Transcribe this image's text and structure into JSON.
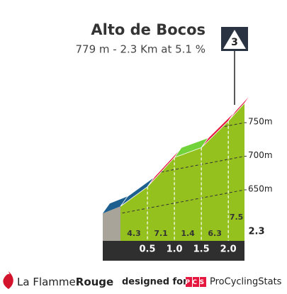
{
  "chart_data": {
    "type": "climb",
    "title": "Alto de Bocos",
    "subtitle": "779 m - 2.3 Km at 5.1 %",
    "category": "3",
    "x": [
      0.5,
      1,
      1.5,
      2,
      2.3
    ],
    "x_labels": [
      "0.5",
      "1.0",
      "1.5",
      "2.0",
      "2.3"
    ],
    "xlim": [
      0,
      2.3
    ],
    "values": [
      4.3,
      7.1,
      1.4,
      6.3,
      7.5
    ],
    "colors": [
      "#1d5f8e",
      "#e5173f",
      "#72d23a",
      "#e5173f",
      "#e5173f"
    ],
    "elevations": [
      682,
      718,
      725,
      757,
      779
    ],
    "fill_color": "#95c11f",
    "ylim": [
      574,
      785
    ],
    "yticks": [
      {
        "value": 650,
        "label": "650m"
      },
      {
        "value": 700,
        "label": "700m"
      },
      {
        "value": 750,
        "label": "750m"
      }
    ]
  },
  "footer": {
    "brand_left": "La Flamme",
    "brand_left_bold": "Rouge",
    "designed_for": "designed for",
    "pcs_logo": "PCS",
    "brand_right": "ProCyclingStats"
  }
}
